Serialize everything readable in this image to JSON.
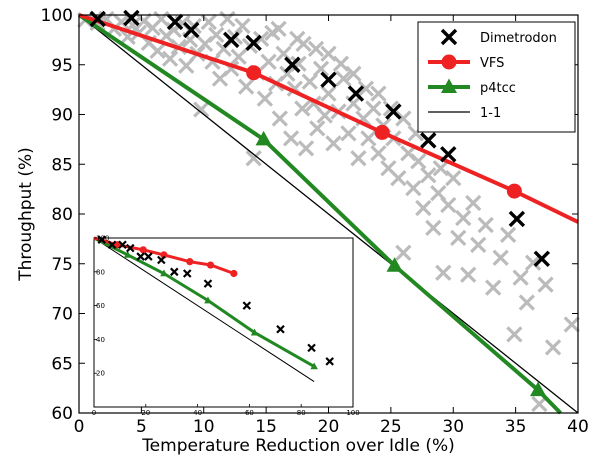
{
  "chart_data": [
    {
      "type": "scatter",
      "xlabel": "Temperature Reduction over Idle (%)",
      "ylabel": "Throughput (%)",
      "xlim": [
        0,
        40
      ],
      "ylim": [
        60,
        100
      ],
      "xticks": [
        0,
        5,
        10,
        15,
        20,
        25,
        30,
        35,
        40
      ],
      "yticks": [
        60,
        65,
        70,
        75,
        80,
        85,
        90,
        95,
        100
      ],
      "legend": "top-right",
      "grid": false,
      "background_points": {
        "color": "#bbbbbb",
        "points": [
          [
            0.5,
            99.5
          ],
          [
            1.5,
            99.2
          ],
          [
            2.2,
            99.6
          ],
          [
            2.8,
            98.6
          ],
          [
            3.4,
            99.3
          ],
          [
            3.9,
            97.8
          ],
          [
            4.3,
            99.0
          ],
          [
            4.8,
            98.2
          ],
          [
            5.2,
            99.4
          ],
          [
            5.6,
            97.2
          ],
          [
            5.9,
            98.7
          ],
          [
            6.3,
            96.4
          ],
          [
            6.6,
            99.6
          ],
          [
            7.0,
            97.9
          ],
          [
            7.3,
            95.6
          ],
          [
            7.6,
            98.5
          ],
          [
            8.0,
            96.8
          ],
          [
            8.3,
            99.2
          ],
          [
            8.6,
            94.9
          ],
          [
            8.9,
            97.5
          ],
          [
            9.2,
            98.9
          ],
          [
            9.5,
            96.1
          ],
          [
            9.8,
            90.5
          ],
          [
            10.1,
            97.1
          ],
          [
            10.4,
            99.3
          ],
          [
            10.7,
            95.3
          ],
          [
            11.0,
            98.0
          ],
          [
            11.3,
            93.6
          ],
          [
            11.6,
            96.6
          ],
          [
            11.9,
            99.6
          ],
          [
            12.2,
            94.6
          ],
          [
            12.5,
            97.8
          ],
          [
            12.8,
            95.8
          ],
          [
            13.1,
            98.9
          ],
          [
            13.4,
            92.8
          ],
          [
            13.7,
            96.9
          ],
          [
            14.0,
            85.6
          ],
          [
            14.3,
            94.2
          ],
          [
            14.6,
            97.6
          ],
          [
            14.9,
            91.6
          ],
          [
            15.2,
            95.3
          ],
          [
            15.5,
            98.2
          ],
          [
            15.8,
            93.1
          ],
          [
            16.1,
            89.6
          ],
          [
            16.4,
            96.1
          ],
          [
            16.7,
            94.1
          ],
          [
            17.0,
            87.6
          ],
          [
            17.3,
            92.6
          ],
          [
            17.6,
            95.1
          ],
          [
            17.9,
            90.6
          ],
          [
            18.2,
            86.6
          ],
          [
            18.5,
            93.3
          ],
          [
            18.8,
            91.1
          ],
          [
            19.1,
            88.6
          ],
          [
            19.4,
            94.6
          ],
          [
            19.7,
            89.9
          ],
          [
            20.0,
            92.1
          ],
          [
            20.4,
            87.1
          ],
          [
            20.8,
            90.3
          ],
          [
            21.2,
            93.6
          ],
          [
            21.6,
            88.1
          ],
          [
            22.0,
            91.1
          ],
          [
            22.4,
            85.6
          ],
          [
            22.8,
            89.6
          ],
          [
            23.2,
            87.6
          ],
          [
            23.6,
            90.6
          ],
          [
            24.0,
            86.1
          ],
          [
            24.4,
            88.9
          ],
          [
            24.8,
            84.6
          ],
          [
            25.2,
            87.6
          ],
          [
            25.6,
            83.6
          ],
          [
            26.0,
            76.1
          ],
          [
            26.4,
            86.1
          ],
          [
            26.8,
            82.6
          ],
          [
            27.2,
            85.3
          ],
          [
            27.6,
            80.6
          ],
          [
            28.0,
            83.9
          ],
          [
            28.4,
            78.6
          ],
          [
            28.8,
            82.1
          ],
          [
            29.2,
            74.1
          ],
          [
            29.6,
            80.9
          ],
          [
            30.0,
            83.6
          ],
          [
            30.4,
            77.6
          ],
          [
            30.8,
            79.6
          ],
          [
            31.2,
            73.9
          ],
          [
            31.6,
            81.1
          ],
          [
            32.0,
            76.9
          ],
          [
            32.6,
            78.9
          ],
          [
            33.2,
            72.6
          ],
          [
            33.8,
            75.6
          ],
          [
            34.4,
            77.9
          ],
          [
            34.9,
            67.9
          ],
          [
            35.4,
            73.6
          ],
          [
            35.9,
            71.1
          ],
          [
            36.4,
            75.1
          ],
          [
            36.9,
            60.9
          ],
          [
            37.4,
            72.9
          ],
          [
            38.0,
            66.6
          ],
          [
            39.5,
            68.9
          ],
          [
            29.0,
            84.6
          ],
          [
            27.0,
            88.1
          ],
          [
            25.0,
            90.6
          ],
          [
            23.0,
            92.6
          ],
          [
            21.0,
            95.1
          ],
          [
            19.0,
            96.6
          ],
          [
            17.5,
            97.6
          ],
          [
            16.0,
            98.6
          ],
          [
            18.0,
            97.1
          ],
          [
            20.0,
            96.1
          ],
          [
            22.0,
            94.1
          ],
          [
            24.0,
            92.1
          ],
          [
            26.0,
            89.6
          ]
        ]
      },
      "series": [
        {
          "name": "Dimetrodon",
          "marker": "x",
          "color": "#000000",
          "x": [
            1.5,
            4.2,
            7.7,
            9.0,
            12.2,
            14.0,
            17.1,
            20.0,
            22.2,
            25.2,
            28.0,
            29.6,
            35.1,
            37.1
          ],
          "y": [
            99.6,
            99.7,
            99.3,
            98.5,
            97.5,
            97.2,
            95.0,
            93.5,
            92.1,
            90.3,
            87.4,
            86.0,
            79.5,
            75.5
          ]
        },
        {
          "name": "VFS",
          "marker": "o",
          "color": "#ee2222",
          "x": [
            0,
            14.0,
            24.3,
            34.9,
            40
          ],
          "y": [
            100,
            94.2,
            88.2,
            82.3,
            79.2
          ]
        },
        {
          "name": "p4tcc",
          "marker": "^",
          "color": "#228822",
          "x": [
            0,
            14.8,
            25.3,
            36.8,
            38.6
          ],
          "y": [
            100,
            87.5,
            74.8,
            62.3,
            60
          ]
        },
        {
          "name": "1-1",
          "marker": "none",
          "color": "#000000",
          "x": [
            0,
            40
          ],
          "y": [
            100,
            60
          ]
        }
      ]
    },
    {
      "type": "scatter",
      "role": "inset",
      "xlim": [
        0,
        100
      ],
      "ylim": [
        0,
        100
      ],
      "xticks": [
        0,
        20,
        40,
        60,
        80,
        100
      ],
      "yticks": [
        20,
        40,
        60,
        80,
        100
      ],
      "series": [
        {
          "name": "Dimetrodon",
          "marker": "x",
          "color": "#000000",
          "x": [
            3,
            7,
            11,
            14,
            18,
            21,
            26,
            31,
            36,
            44,
            59,
            72,
            84,
            91
          ],
          "y": [
            99,
            96,
            96,
            94,
            89,
            89,
            87,
            80,
            79,
            73,
            60,
            46,
            35,
            27
          ]
        },
        {
          "name": "VFS",
          "marker": "o",
          "color": "#ee2222",
          "x": [
            0,
            9,
            19,
            27,
            37,
            45,
            54
          ],
          "y": [
            100,
            96,
            93,
            90,
            86,
            84,
            79
          ]
        },
        {
          "name": "p4tcc",
          "marker": "^",
          "color": "#228822",
          "x": [
            0,
            13,
            27,
            44,
            62,
            85
          ],
          "y": [
            100,
            90,
            79,
            63,
            44,
            24
          ]
        },
        {
          "name": "1-1",
          "marker": "none",
          "color": "#000000",
          "x": [
            0,
            85
          ],
          "y": [
            100,
            15
          ]
        }
      ]
    }
  ]
}
